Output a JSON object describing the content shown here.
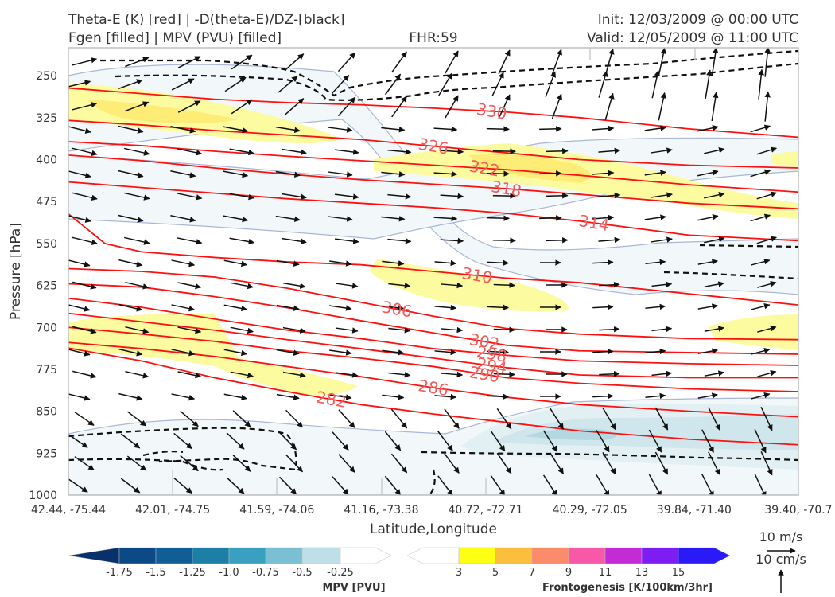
{
  "header": {
    "title_line1": "Theta-E (K) [red] | -D(theta-E)/DZ-[black]",
    "title_line2": "Fgen [filled] | MPV (PVU) [filled]",
    "fhr": "FHR:59",
    "init": "Init: 12/03/2009 @ 00:00 UTC",
    "valid": "Valid: 12/05/2009 @ 11:00 UTC"
  },
  "chart_data": {
    "type": "cross-section",
    "xlabel": "Latitude,Longitude",
    "ylabel": "Pressure [hPa]",
    "x_ticks": [
      "42.44, -75.44",
      "42.01, -74.75",
      "41.59, -74.06",
      "41.16, -73.38",
      "40.72, -72.71",
      "40.29, -72.05",
      "39.84, -71.40",
      "39.40, -70.7"
    ],
    "y_ticks": [
      250,
      325,
      400,
      475,
      550,
      625,
      700,
      775,
      850,
      925,
      1000
    ],
    "ylim": [
      1000,
      200
    ],
    "theta_e_contours": [
      {
        "value": 282,
        "points": [
          [
            0,
            737
          ],
          [
            0.1,
            760
          ],
          [
            0.2,
            790
          ],
          [
            0.3,
            815
          ],
          [
            0.4,
            838
          ],
          [
            0.5,
            855
          ],
          [
            0.6,
            870
          ],
          [
            0.7,
            885
          ],
          [
            0.85,
            900
          ],
          [
            1,
            910
          ]
        ]
      },
      {
        "value": 286,
        "points": [
          [
            0,
            727
          ],
          [
            0.1,
            738
          ],
          [
            0.2,
            752
          ],
          [
            0.3,
            770
          ],
          [
            0.4,
            788
          ],
          [
            0.5,
            808
          ],
          [
            0.6,
            825
          ],
          [
            0.7,
            838
          ],
          [
            0.85,
            850
          ],
          [
            1,
            860
          ]
        ]
      },
      {
        "value": 290,
        "points": [
          [
            0,
            700
          ],
          [
            0.1,
            712
          ],
          [
            0.2,
            725
          ],
          [
            0.3,
            742
          ],
          [
            0.4,
            755
          ],
          [
            0.5,
            770
          ],
          [
            0.6,
            790
          ],
          [
            0.7,
            800
          ],
          [
            0.85,
            810
          ],
          [
            1,
            815
          ]
        ]
      },
      {
        "value": 294,
        "points": [
          [
            0,
            675
          ],
          [
            0.1,
            690
          ],
          [
            0.2,
            705
          ],
          [
            0.3,
            722
          ],
          [
            0.4,
            738
          ],
          [
            0.5,
            755
          ],
          [
            0.6,
            772
          ],
          [
            0.7,
            785
          ],
          [
            0.85,
            790
          ],
          [
            1,
            790
          ]
        ]
      },
      {
        "value": 298,
        "points": [
          [
            0,
            648
          ],
          [
            0.1,
            664
          ],
          [
            0.2,
            685
          ],
          [
            0.3,
            705
          ],
          [
            0.4,
            720
          ],
          [
            0.5,
            738
          ],
          [
            0.6,
            750
          ],
          [
            0.7,
            760
          ],
          [
            0.85,
            765
          ],
          [
            1,
            768
          ]
        ]
      },
      {
        "value": 302,
        "points": [
          [
            0,
            622
          ],
          [
            0.1,
            628
          ],
          [
            0.2,
            645
          ],
          [
            0.3,
            665
          ],
          [
            0.4,
            688
          ],
          [
            0.5,
            710
          ],
          [
            0.6,
            732
          ],
          [
            0.7,
            742
          ],
          [
            0.85,
            745
          ],
          [
            1,
            748
          ]
        ]
      },
      {
        "value": 306,
        "points": [
          [
            0,
            595
          ],
          [
            0.1,
            600
          ],
          [
            0.2,
            610
          ],
          [
            0.3,
            630
          ],
          [
            0.4,
            655
          ],
          [
            0.5,
            680
          ],
          [
            0.6,
            702
          ],
          [
            0.7,
            712
          ],
          [
            0.85,
            720
          ],
          [
            1,
            722
          ]
        ]
      },
      {
        "value": 310,
        "points": [
          [
            0,
            497
          ],
          [
            0.05,
            550
          ],
          [
            0.1,
            565
          ],
          [
            0.2,
            575
          ],
          [
            0.3,
            583
          ],
          [
            0.4,
            588
          ],
          [
            0.5,
            600
          ],
          [
            0.6,
            612
          ],
          [
            0.7,
            620
          ],
          [
            0.85,
            640
          ],
          [
            1,
            660
          ]
        ]
      },
      {
        "value": 314,
        "points": [
          [
            0,
            440
          ],
          [
            0.1,
            450
          ],
          [
            0.2,
            460
          ],
          [
            0.3,
            470
          ],
          [
            0.4,
            478
          ],
          [
            0.5,
            486
          ],
          [
            0.6,
            496
          ],
          [
            0.7,
            510
          ],
          [
            0.85,
            535
          ],
          [
            1,
            545
          ]
        ]
      },
      {
        "value": 318,
        "points": [
          [
            0,
            392
          ],
          [
            0.1,
            402
          ],
          [
            0.2,
            415
          ],
          [
            0.3,
            426
          ],
          [
            0.4,
            436
          ],
          [
            0.5,
            444
          ],
          [
            0.6,
            452
          ],
          [
            0.7,
            462
          ],
          [
            0.85,
            478
          ],
          [
            1,
            488
          ]
        ]
      },
      {
        "value": 322,
        "points": [
          [
            0,
            368
          ],
          [
            0.1,
            375
          ],
          [
            0.2,
            385
          ],
          [
            0.3,
            394
          ],
          [
            0.4,
            402
          ],
          [
            0.5,
            410
          ],
          [
            0.6,
            418
          ],
          [
            0.7,
            428
          ],
          [
            0.85,
            445
          ],
          [
            1,
            458
          ]
        ]
      },
      {
        "value": 326,
        "points": [
          [
            0,
            330
          ],
          [
            0.1,
            338
          ],
          [
            0.2,
            348
          ],
          [
            0.3,
            356
          ],
          [
            0.4,
            364
          ],
          [
            0.5,
            376
          ],
          [
            0.6,
            388
          ],
          [
            0.7,
            400
          ],
          [
            0.85,
            410
          ],
          [
            1,
            415
          ]
        ]
      },
      {
        "value": 330,
        "points": [
          [
            0,
            272
          ],
          [
            0.1,
            282
          ],
          [
            0.2,
            292
          ],
          [
            0.3,
            298
          ],
          [
            0.4,
            302
          ],
          [
            0.5,
            308
          ],
          [
            0.6,
            315
          ],
          [
            0.7,
            325
          ],
          [
            0.85,
            345
          ],
          [
            1,
            360
          ]
        ]
      }
    ],
    "mpv_colorbar": {
      "label": "MPV [PVU]",
      "levels": [
        "-1.75",
        "-1.5",
        "-1.25",
        "-1.0",
        "-0.75",
        "-0.5",
        "-0.25"
      ],
      "colors": [
        "#08306b",
        "#0b4a86",
        "#105e95",
        "#1b7fa6",
        "#3aa0c1",
        "#7bbfd4",
        "#bfdfe8",
        "#ffffff"
      ]
    },
    "fgen_colorbar": {
      "label": "Frontogenesis [K/100km/3hr]",
      "levels": [
        "3",
        "5",
        "7",
        "9",
        "11",
        "13",
        "15"
      ],
      "colors": [
        "#ffffff",
        "#ffff14",
        "#fdbe3d",
        "#fb8c6b",
        "#f759a8",
        "#c32bd6",
        "#7e1df3",
        "#2a1af8"
      ]
    },
    "wind_key": {
      "horizontal": "10 m/s",
      "vertical": "10 cm/s"
    }
  }
}
